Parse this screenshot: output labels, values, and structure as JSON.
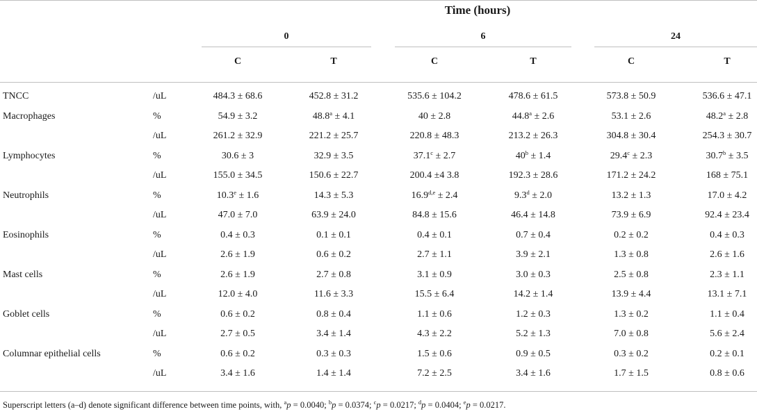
{
  "header": {
    "title": "Time (hours)",
    "time_points": [
      "0",
      "6",
      "24"
    ],
    "group_labels": [
      "C",
      "T"
    ]
  },
  "rows": [
    {
      "label": "TNCC",
      "unit": "/uL",
      "cells": [
        {
          "v": "484.3 ± 68.6"
        },
        {
          "v": "452.8 ± 31.2"
        },
        {
          "v": "535.6 ± 104.2"
        },
        {
          "v": "478.6 ± 61.5"
        },
        {
          "v": "573.8 ± 50.9"
        },
        {
          "v": "536.6 ± 47.1"
        }
      ]
    },
    {
      "label": "Macrophages",
      "unit": "%",
      "cells": [
        {
          "v": "54.9 ± 3.2"
        },
        {
          "v": "48.8",
          "s": "a",
          "r": " ± 4.1"
        },
        {
          "v": "40 ± 2.8"
        },
        {
          "v": "44.8",
          "s": "a",
          "r": " ± 2.6"
        },
        {
          "v": "53.1 ± 2.6"
        },
        {
          "v": "48.2",
          "s": "a",
          "r": " ± 2.8"
        }
      ]
    },
    {
      "label": "",
      "unit": "/uL",
      "cells": [
        {
          "v": "261.2 ± 32.9"
        },
        {
          "v": "221.2 ± 25.7"
        },
        {
          "v": "220.8 ± 48.3"
        },
        {
          "v": "213.2 ± 26.3"
        },
        {
          "v": "304.8 ± 30.4"
        },
        {
          "v": "254.3 ± 30.7"
        }
      ]
    },
    {
      "label": "Lymphocytes",
      "unit": "%",
      "cells": [
        {
          "v": "30.6 ± 3"
        },
        {
          "v": "32.9 ± 3.5"
        },
        {
          "v": "37.1",
          "s": "c",
          "r": " ± 2.7"
        },
        {
          "v": "40",
          "s": "b",
          "r": " ± 1.4"
        },
        {
          "v": "29.4",
          "s": "c",
          "r": " ± 2.3"
        },
        {
          "v": "30.7",
          "s": "b",
          "r": " ± 3.5"
        }
      ]
    },
    {
      "label": "",
      "unit": "/uL",
      "cells": [
        {
          "v": "155.0 ± 34.5"
        },
        {
          "v": "150.6 ± 22.7"
        },
        {
          "v": "200.4 ±4 3.8"
        },
        {
          "v": "192.3 ± 28.6"
        },
        {
          "v": "171.2 ± 24.2"
        },
        {
          "v": "168 ± 75.1"
        }
      ]
    },
    {
      "label": "Neutrophils",
      "unit": "%",
      "cells": [
        {
          "v": "10.3",
          "s": "e",
          "r": " ± 1.6"
        },
        {
          "v": "14.3 ± 5.3"
        },
        {
          "v": "16.9",
          "s": "d,e",
          "r": " ± 2.4"
        },
        {
          "v": "9.3",
          "s": "d",
          "r": " ± 2.0"
        },
        {
          "v": "13.2 ± 1.3"
        },
        {
          "v": "17.0 ± 4.2"
        }
      ]
    },
    {
      "label": "",
      "unit": "/uL",
      "cells": [
        {
          "v": "47.0 ± 7.0"
        },
        {
          "v": "63.9 ± 24.0"
        },
        {
          "v": "84.8 ± 15.6"
        },
        {
          "v": "46.4 ± 14.8"
        },
        {
          "v": "73.9 ± 6.9"
        },
        {
          "v": "92.4 ± 23.4"
        }
      ]
    },
    {
      "label": "Eosinophils",
      "unit": "%",
      "cells": [
        {
          "v": "0.4 ± 0.3"
        },
        {
          "v": "0.1 ± 0.1"
        },
        {
          "v": "0.4 ± 0.1"
        },
        {
          "v": "0.7 ± 0.4"
        },
        {
          "v": "0.2 ± 0.2"
        },
        {
          "v": "0.4 ± 0.3"
        }
      ]
    },
    {
      "label": "",
      "unit": "/uL",
      "cells": [
        {
          "v": "2.6 ± 1.9"
        },
        {
          "v": "0.6 ± 0.2"
        },
        {
          "v": "2.7 ± 1.1"
        },
        {
          "v": "3.9 ± 2.1"
        },
        {
          "v": "1.3 ± 0.8"
        },
        {
          "v": "2.6 ± 1.6"
        }
      ]
    },
    {
      "label": "Mast cells",
      "unit": "%",
      "cells": [
        {
          "v": "2.6 ± 1.9"
        },
        {
          "v": "2.7 ± 0.8"
        },
        {
          "v": "3.1 ± 0.9"
        },
        {
          "v": "3.0 ± 0.3"
        },
        {
          "v": "2.5 ± 0.8"
        },
        {
          "v": "2.3 ± 1.1"
        }
      ]
    },
    {
      "label": "",
      "unit": "/uL",
      "cells": [
        {
          "v": "12.0 ± 4.0"
        },
        {
          "v": "11.6 ± 3.3"
        },
        {
          "v": "15.5 ± 6.4"
        },
        {
          "v": "14.2 ± 1.4"
        },
        {
          "v": "13.9 ± 4.4"
        },
        {
          "v": "13.1 ± 7.1"
        }
      ]
    },
    {
      "label": "Goblet cells",
      "unit": "%",
      "cells": [
        {
          "v": "0.6 ± 0.2"
        },
        {
          "v": "0.8 ± 0.4"
        },
        {
          "v": "1.1 ± 0.6"
        },
        {
          "v": "1.2 ± 0.3"
        },
        {
          "v": "1.3 ± 0.2"
        },
        {
          "v": "1.1 ± 0.4"
        }
      ]
    },
    {
      "label": "",
      "unit": "/uL",
      "cells": [
        {
          "v": "2.7 ± 0.5"
        },
        {
          "v": "3.4 ± 1.4"
        },
        {
          "v": "4.3 ± 2.2"
        },
        {
          "v": "5.2 ± 1.3"
        },
        {
          "v": "7.0 ± 0.8"
        },
        {
          "v": "5.6 ± 2.4"
        }
      ]
    },
    {
      "label": "Columnar epithelial cells",
      "unit": "%",
      "cells": [
        {
          "v": "0.6 ± 0.2"
        },
        {
          "v": "0.3 ± 0.3"
        },
        {
          "v": "1.5 ± 0.6"
        },
        {
          "v": "0.9 ± 0.5"
        },
        {
          "v": "0.3 ± 0.2"
        },
        {
          "v": "0.2 ± 0.1"
        }
      ]
    },
    {
      "label": "",
      "unit": "/uL",
      "cells": [
        {
          "v": "3.4 ± 1.6"
        },
        {
          "v": "1.4 ± 1.4"
        },
        {
          "v": "7.2 ± 2.5"
        },
        {
          "v": "3.4 ± 1.6"
        },
        {
          "v": "1.7 ± 1.5"
        },
        {
          "v": "0.8 ± 0.6"
        }
      ]
    }
  ],
  "footnote": {
    "text": "Superscript letters (a–d) denote significant difference between time points, with,",
    "items": [
      {
        "sup": "a",
        "var": "p",
        "val": " = 0.0040;"
      },
      {
        "sup": "b",
        "var": "p",
        "val": " = 0.0374;"
      },
      {
        "sup": "c",
        "var": "p",
        "val": " = 0.0217;"
      },
      {
        "sup": "d",
        "var": "p",
        "val": " = 0.0404;"
      },
      {
        "sup": "e",
        "var": "p",
        "val": " = 0.0217."
      }
    ]
  }
}
